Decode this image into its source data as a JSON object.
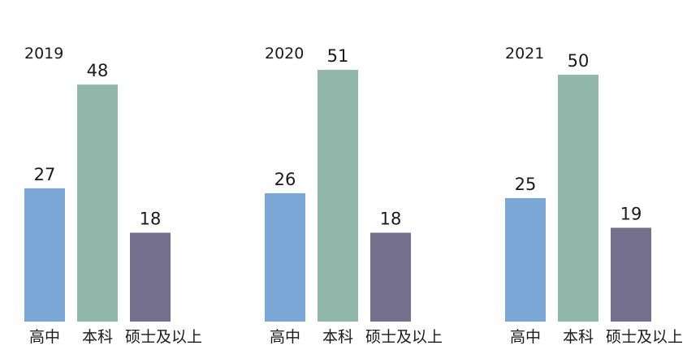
{
  "chart_data": {
    "type": "bar",
    "title": "",
    "xlabel": "",
    "ylabel": "",
    "ylim": [
      0,
      55
    ],
    "grid": false,
    "legend": "none",
    "categories": [
      "高中",
      "本科",
      "硕士及以上"
    ],
    "colors": [
      "#7ba7d7",
      "#92b8ab",
      "#736f8c"
    ],
    "groups": [
      {
        "year": "2019",
        "values": [
          27,
          48,
          18
        ]
      },
      {
        "year": "2020",
        "values": [
          26,
          51,
          18
        ]
      },
      {
        "year": "2021",
        "values": [
          25,
          50,
          19
        ]
      }
    ]
  }
}
